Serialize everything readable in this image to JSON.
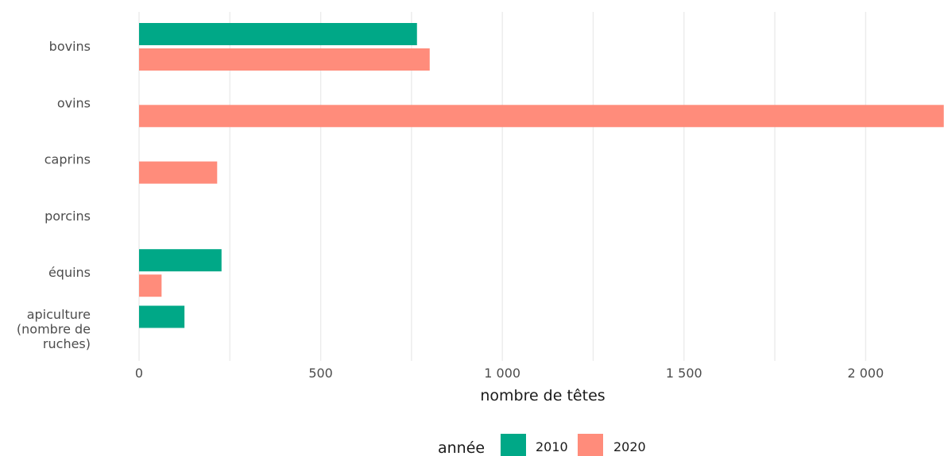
{
  "chart_data": {
    "type": "bar",
    "orientation": "horizontal",
    "categories": [
      [
        "bovins"
      ],
      [
        "ovins"
      ],
      [
        "caprins"
      ],
      [
        "porcins"
      ],
      [
        "équins"
      ],
      [
        "apiculture",
        "(nombre de",
        "ruches)"
      ]
    ],
    "series": [
      {
        "name": "2010",
        "color": "#00a887",
        "values": [
          765,
          null,
          null,
          null,
          227,
          125
        ]
      },
      {
        "name": "2020",
        "color": "#ff8c7b",
        "values": [
          800,
          2215,
          215,
          null,
          62,
          null
        ]
      }
    ],
    "x_ticks": [
      0,
      500,
      1000,
      1500,
      2000
    ],
    "x_tick_labels": [
      "0",
      "500",
      "1 000",
      "1 500",
      "2 000"
    ],
    "xlim": [
      0,
      2215
    ],
    "xlabel": "nombre de têtes",
    "ylabel": "",
    "grid": true,
    "legend": {
      "title": "année",
      "position": "bottom"
    }
  }
}
